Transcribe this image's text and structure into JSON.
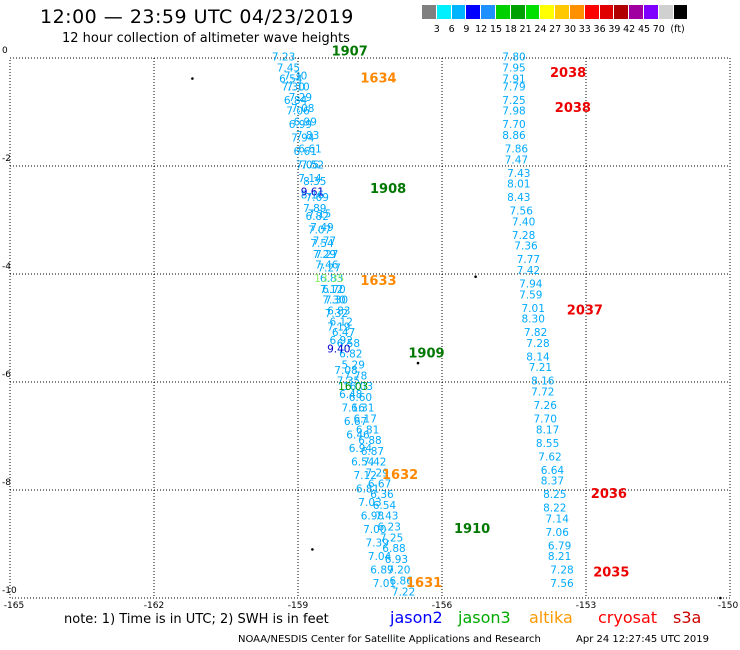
{
  "header": {
    "title": "12:00 — 23:59 UTC 04/23/2019",
    "subtitle": "12 hour collection of altimeter wave heights"
  },
  "legend": {
    "colors": [
      "#808080",
      "#00f0ff",
      "#00b4ff",
      "#0000ff",
      "#1e90ff",
      "#00d000",
      "#00a000",
      "#00e000",
      "#ffff00",
      "#ffc800",
      "#ff9000",
      "#ff0000",
      "#e00000",
      "#b00000",
      "#a000a0",
      "#8000ff",
      "#d0d0d0",
      "#000000"
    ],
    "labels": [
      "3",
      "6",
      "9",
      "12",
      "15",
      "18",
      "21",
      "24",
      "27",
      "30",
      "33",
      "36",
      "39",
      "42",
      "45",
      "70",
      "(ft)"
    ]
  },
  "axes": {
    "y_ticks": [
      "0",
      "-2",
      "-4",
      "-6",
      "-8",
      "-10"
    ],
    "x_ticks": [
      "-165",
      "-162",
      "-159",
      "-156",
      "-153",
      "-150"
    ]
  },
  "map_data": {
    "tracks": [
      {
        "satellite": "jason3",
        "color": "#00aaff",
        "points": [
          {
            "lon": -159.3,
            "lat": -0.05,
            "v": "7.23"
          },
          {
            "lon": -159.2,
            "lat": -0.25,
            "v": "7.45"
          },
          {
            "lon": -159.15,
            "lat": -0.45,
            "v": "6.54"
          },
          {
            "lon": -159.1,
            "lat": -0.6,
            "v": "7.30"
          },
          {
            "lon": -159.05,
            "lat": -0.85,
            "v": "6.84"
          },
          {
            "lon": -159.0,
            "lat": -1.05,
            "v": "7.06"
          },
          {
            "lon": -158.95,
            "lat": -1.3,
            "v": "6.99"
          },
          {
            "lon": -158.9,
            "lat": -1.55,
            "v": "7.94"
          },
          {
            "lon": -158.85,
            "lat": -1.8,
            "v": "6.61"
          },
          {
            "lon": -158.8,
            "lat": -2.05,
            "v": "7.05"
          },
          {
            "lon": -158.75,
            "lat": -2.3,
            "v": "7.14"
          },
          {
            "lon": -158.7,
            "lat": -2.6,
            "v": "8.16"
          },
          {
            "lon": -158.65,
            "lat": -2.85,
            "v": "7.89"
          },
          {
            "lon": -158.6,
            "lat": -3.0,
            "v": "6.82"
          },
          {
            "lon": -158.55,
            "lat": -3.25,
            "v": "7.07"
          },
          {
            "lon": -158.5,
            "lat": -3.5,
            "v": "7.54"
          },
          {
            "lon": -158.45,
            "lat": -3.7,
            "v": "7.29"
          },
          {
            "lon": -158.4,
            "lat": -3.9,
            "v": "7.46"
          },
          {
            "lon": -158.3,
            "lat": -4.15,
            "v": "6.83"
          },
          {
            "lon": -158.25,
            "lat": -4.35,
            "v": "6.70"
          },
          {
            "lon": -158.2,
            "lat": -4.55,
            "v": "7.30"
          },
          {
            "lon": -158.15,
            "lat": -4.75,
            "v": "6.83"
          },
          {
            "lon": -158.1,
            "lat": -4.95,
            "v": "6.12"
          },
          {
            "lon": -158.05,
            "lat": -5.15,
            "v": "6.47"
          },
          {
            "lon": -157.95,
            "lat": -5.35,
            "v": "6.58"
          },
          {
            "lon": -157.9,
            "lat": -5.55,
            "v": "6.82"
          },
          {
            "lon": -157.85,
            "lat": -5.75,
            "v": "5.29"
          },
          {
            "lon": -157.8,
            "lat": -5.95,
            "v": "7.78"
          },
          {
            "lon": -157.75,
            "lat": -6.15,
            "v": "16.03"
          },
          {
            "lon": -157.7,
            "lat": -6.35,
            "v": "6.60"
          },
          {
            "lon": -157.65,
            "lat": -6.55,
            "v": "6.31"
          },
          {
            "lon": -157.6,
            "lat": -6.75,
            "v": "6.17"
          },
          {
            "lon": -157.55,
            "lat": -6.95,
            "v": "6.81"
          },
          {
            "lon": -157.5,
            "lat": -7.15,
            "v": "6.88"
          },
          {
            "lon": -157.45,
            "lat": -7.35,
            "v": "6.87"
          },
          {
            "lon": -157.4,
            "lat": -7.55,
            "v": "7.42"
          },
          {
            "lon": -157.35,
            "lat": -7.75,
            "v": "7.29"
          },
          {
            "lon": -157.3,
            "lat": -7.95,
            "v": "6.67"
          },
          {
            "lon": -157.25,
            "lat": -8.15,
            "v": "6.36"
          },
          {
            "lon": -157.2,
            "lat": -8.35,
            "v": "6.54"
          },
          {
            "lon": -157.15,
            "lat": -8.55,
            "v": "7.43"
          },
          {
            "lon": -157.1,
            "lat": -8.75,
            "v": "6.23"
          },
          {
            "lon": -157.05,
            "lat": -8.95,
            "v": "7.25"
          },
          {
            "lon": -157.0,
            "lat": -9.15,
            "v": "6.88"
          },
          {
            "lon": -156.95,
            "lat": -9.35,
            "v": "6.93"
          },
          {
            "lon": -156.9,
            "lat": -9.55,
            "v": "7.20"
          },
          {
            "lon": -156.85,
            "lat": -9.75,
            "v": "6.86"
          },
          {
            "lon": -156.8,
            "lat": -9.95,
            "v": "7.22"
          }
        ]
      },
      {
        "satellite": "jason3b",
        "color": "#00aaff",
        "points": [
          {
            "lon": -159.05,
            "lat": -0.4,
            "v": "7.30"
          },
          {
            "lon": -159.0,
            "lat": -0.6,
            "v": "7.10"
          },
          {
            "lon": -158.95,
            "lat": -0.8,
            "v": "7.29"
          },
          {
            "lon": -158.9,
            "lat": -1.0,
            "v": "7.08"
          },
          {
            "lon": -158.85,
            "lat": -1.25,
            "v": "6.99"
          },
          {
            "lon": -158.8,
            "lat": -1.5,
            "v": "7.83"
          },
          {
            "lon": -158.75,
            "lat": -1.75,
            "v": "6.61"
          },
          {
            "lon": -158.7,
            "lat": -2.05,
            "v": "7.52"
          },
          {
            "lon": -158.65,
            "lat": -2.35,
            "v": "8.35"
          },
          {
            "lon": -158.6,
            "lat": -2.65,
            "v": "7.69"
          },
          {
            "lon": -158.55,
            "lat": -2.95,
            "v": "7.15"
          },
          {
            "lon": -158.5,
            "lat": -3.2,
            "v": "7.49"
          },
          {
            "lon": -158.45,
            "lat": -3.45,
            "v": "7.77"
          },
          {
            "lon": -158.4,
            "lat": -3.7,
            "v": "7.27"
          },
          {
            "lon": -158.35,
            "lat": -3.95,
            "v": "7.27"
          },
          {
            "lon": -158.3,
            "lat": -4.35,
            "v": "7.12"
          },
          {
            "lon": -158.25,
            "lat": -4.55,
            "v": "7.30"
          },
          {
            "lon": -158.2,
            "lat": -4.8,
            "v": "7.32"
          },
          {
            "lon": -158.15,
            "lat": -5.05,
            "v": "7.19"
          },
          {
            "lon": -158.1,
            "lat": -5.3,
            "v": "6.92"
          },
          {
            "lon": -158.0,
            "lat": -5.85,
            "v": "7.08"
          },
          {
            "lon": -157.95,
            "lat": -6.05,
            "v": "7.35"
          },
          {
            "lon": -157.9,
            "lat": -6.3,
            "v": "6.48"
          },
          {
            "lon": -157.85,
            "lat": -6.55,
            "v": "7.16"
          },
          {
            "lon": -157.8,
            "lat": -6.8,
            "v": "6.67"
          },
          {
            "lon": -157.75,
            "lat": -7.05,
            "v": "6.46"
          },
          {
            "lon": -157.7,
            "lat": -7.3,
            "v": "6.94"
          },
          {
            "lon": -157.65,
            "lat": -7.55,
            "v": "6.54"
          },
          {
            "lon": -157.6,
            "lat": -7.8,
            "v": "7.12"
          },
          {
            "lon": -157.55,
            "lat": -8.05,
            "v": "6.81"
          },
          {
            "lon": -157.5,
            "lat": -8.3,
            "v": "7.03"
          },
          {
            "lon": -157.45,
            "lat": -8.55,
            "v": "6.98"
          },
          {
            "lon": -157.4,
            "lat": -8.8,
            "v": "7.00"
          },
          {
            "lon": -157.35,
            "lat": -9.05,
            "v": "7.39"
          },
          {
            "lon": -157.3,
            "lat": -9.3,
            "v": "7.04"
          },
          {
            "lon": -157.25,
            "lat": -9.55,
            "v": "6.89"
          },
          {
            "lon": -157.2,
            "lat": -9.8,
            "v": "7.01"
          }
        ]
      },
      {
        "satellite": "cryosat",
        "color": "#00aaff",
        "points": [
          {
            "lon": -154.5,
            "lat": -0.05,
            "v": "7.80"
          },
          {
            "lon": -154.5,
            "lat": -0.25,
            "v": "7.95"
          },
          {
            "lon": -154.5,
            "lat": -0.45,
            "v": "7.91"
          },
          {
            "lon": -154.5,
            "lat": -0.6,
            "v": "7.79"
          },
          {
            "lon": -154.5,
            "lat": -0.85,
            "v": "7.25"
          },
          {
            "lon": -154.5,
            "lat": -1.05,
            "v": "7.98"
          },
          {
            "lon": -154.5,
            "lat": -1.3,
            "v": "7.70"
          },
          {
            "lon": -154.5,
            "lat": -1.5,
            "v": "8.86"
          },
          {
            "lon": -154.45,
            "lat": -1.75,
            "v": "7.86"
          },
          {
            "lon": -154.45,
            "lat": -1.95,
            "v": "7.47"
          },
          {
            "lon": -154.4,
            "lat": -2.2,
            "v": "7.43"
          },
          {
            "lon": -154.4,
            "lat": -2.4,
            "v": "8.01"
          },
          {
            "lon": -154.4,
            "lat": -2.65,
            "v": "8.43"
          },
          {
            "lon": -154.35,
            "lat": -2.9,
            "v": "7.56"
          },
          {
            "lon": -154.3,
            "lat": -3.1,
            "v": "7.40"
          },
          {
            "lon": -154.3,
            "lat": -3.35,
            "v": "7.28"
          },
          {
            "lon": -154.25,
            "lat": -3.55,
            "v": "7.36"
          },
          {
            "lon": -154.2,
            "lat": -3.8,
            "v": "7.77"
          },
          {
            "lon": -154.2,
            "lat": -4.0,
            "v": "7.42"
          },
          {
            "lon": -154.15,
            "lat": -4.25,
            "v": "7.94"
          },
          {
            "lon": -154.15,
            "lat": -4.45,
            "v": "7.59"
          },
          {
            "lon": -154.1,
            "lat": -4.7,
            "v": "7.01"
          },
          {
            "lon": -154.1,
            "lat": -4.9,
            "v": "8.30"
          },
          {
            "lon": -154.05,
            "lat": -5.15,
            "v": "7.82"
          },
          {
            "lon": -154.0,
            "lat": -5.35,
            "v": "7.28"
          },
          {
            "lon": -154.0,
            "lat": -5.6,
            "v": "8.14"
          },
          {
            "lon": -153.95,
            "lat": -5.8,
            "v": "7.21"
          },
          {
            "lon": -153.9,
            "lat": -6.05,
            "v": "8.16"
          },
          {
            "lon": -153.9,
            "lat": -6.25,
            "v": "7.72"
          },
          {
            "lon": -153.85,
            "lat": -6.5,
            "v": "7.26"
          },
          {
            "lon": -153.85,
            "lat": -6.75,
            "v": "7.70"
          },
          {
            "lon": -153.8,
            "lat": -6.95,
            "v": "8.17"
          },
          {
            "lon": -153.8,
            "lat": -7.2,
            "v": "8.55"
          },
          {
            "lon": -153.75,
            "lat": -7.45,
            "v": "7.62"
          },
          {
            "lon": -153.7,
            "lat": -7.7,
            "v": "6.64"
          },
          {
            "lon": -153.7,
            "lat": -7.9,
            "v": "8.37"
          },
          {
            "lon": -153.65,
            "lat": -8.15,
            "v": "8.25"
          },
          {
            "lon": -153.65,
            "lat": -8.4,
            "v": "8.22"
          },
          {
            "lon": -153.6,
            "lat": -8.6,
            "v": "7.14"
          },
          {
            "lon": -153.6,
            "lat": -8.85,
            "v": "7.06"
          },
          {
            "lon": -153.55,
            "lat": -9.1,
            "v": "6.79"
          },
          {
            "lon": -153.55,
            "lat": -9.3,
            "v": "8.21"
          },
          {
            "lon": -153.5,
            "lat": -9.55,
            "v": "7.28"
          },
          {
            "lon": -153.5,
            "lat": -9.8,
            "v": "7.56"
          }
        ]
      }
    ],
    "highlights": [
      {
        "lon": -158.7,
        "lat": -2.55,
        "v": "9.61",
        "color": "#0000cc"
      },
      {
        "lon": -158.35,
        "lat": -4.15,
        "v": "13.35",
        "color": "#88ee66"
      },
      {
        "lon": -158.15,
        "lat": -5.45,
        "v": "9.40",
        "color": "#0000cc"
      },
      {
        "lon": -157.85,
        "lat": -6.15,
        "v": "16.03",
        "color": "#009900"
      }
    ],
    "time_labels": [
      {
        "lon": -158.3,
        "lat": 0.05,
        "v": "1907",
        "color": "#007700"
      },
      {
        "lon": -157.7,
        "lat": -0.45,
        "v": "1634",
        "color": "#ff8800"
      },
      {
        "lon": -157.5,
        "lat": -2.5,
        "v": "1908",
        "color": "#007700"
      },
      {
        "lon": -157.7,
        "lat": -4.2,
        "v": "1633",
        "color": "#ff8800"
      },
      {
        "lon": -156.7,
        "lat": -5.55,
        "v": "1909",
        "color": "#007700"
      },
      {
        "lon": -157.25,
        "lat": -7.8,
        "v": "1632",
        "color": "#ff8800"
      },
      {
        "lon": -155.75,
        "lat": -8.8,
        "v": "1910",
        "color": "#007700"
      },
      {
        "lon": -156.75,
        "lat": -9.8,
        "v": "1631",
        "color": "#ff8800"
      },
      {
        "lon": -153.75,
        "lat": -0.35,
        "v": "2038",
        "color": "#ee0000"
      },
      {
        "lon": -153.65,
        "lat": -1.0,
        "v": "2038",
        "color": "#ee0000"
      },
      {
        "lon": -153.4,
        "lat": -4.75,
        "v": "2037",
        "color": "#ee0000"
      },
      {
        "lon": -152.9,
        "lat": -8.15,
        "v": "2036",
        "color": "#ee0000"
      },
      {
        "lon": -152.85,
        "lat": -9.6,
        "v": "2035",
        "color": "#ee0000"
      }
    ]
  },
  "footer": {
    "note": "note:  1) Time is in UTC;  2) SWH is in feet",
    "satellites": [
      {
        "name": "jason2",
        "color": "#0000ff"
      },
      {
        "name": "jason3",
        "color": "#00aa00"
      },
      {
        "name": "altika",
        "color": "#ff9900"
      },
      {
        "name": "cryosat",
        "color": "#ff0000"
      },
      {
        "name": "s3a",
        "color": "#cc0000"
      }
    ],
    "credit": "NOAA/NESDIS Center for Satellite Applications and Research",
    "timestamp": "Apr 24 12:27:45 UTC 2019"
  }
}
